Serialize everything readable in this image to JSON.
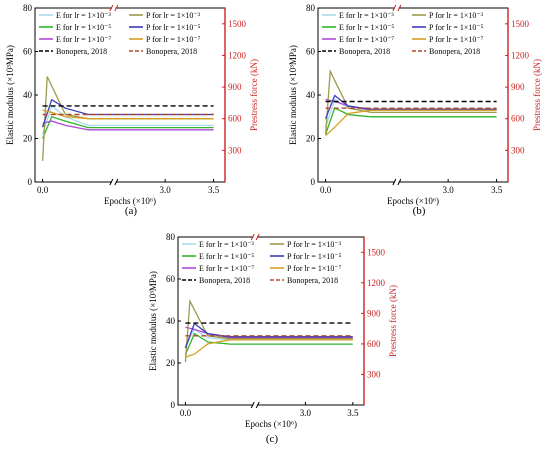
{
  "figure": {
    "colors": {
      "left_axis": "#000000",
      "right_axis": "#cc2222",
      "E_1e3": "#a8dcea",
      "E_1e5": "#2db52d",
      "E_1e7": "#b04ad8",
      "P_1e3": "#9c9a4e",
      "P_1e5": "#3a3ab8",
      "P_1e7": "#d6a020",
      "ref_E": "#000000",
      "ref_P": "#b24a2a"
    }
  },
  "chart_data": [
    {
      "type": "line",
      "panel_label": "(a)",
      "ylabel": "Elastic modulus (×10³MPa)",
      "y2label": "Prestress force (kN)",
      "xlabel": "Epochs (×10⁶)",
      "ylim": [
        0,
        80
      ],
      "yticks": [
        "0",
        "20",
        "40",
        "60",
        "80"
      ],
      "y2lim": [
        0,
        1650
      ],
      "y2ticks": [
        "300",
        "600",
        "900",
        "1200",
        "1500"
      ],
      "xticks": [
        "0.0",
        "3.0",
        "3.5"
      ],
      "axis_break": true,
      "legend": [
        "E for lr = 1×10⁻³",
        "P for lr = 1×10⁻³",
        "E for lr = 1×10⁻⁵",
        "P for lr = 1×10⁻⁵",
        "E for lr = 1×10⁻⁷",
        "P for lr = 1×10⁻⁷",
        "Bonopera, 2018",
        "Bonopera, 2018"
      ],
      "legend_placement": "top",
      "series": [
        {
          "key": "E_1e3",
          "name": "E for lr = 1×10⁻³",
          "x": [
            0,
            0.2,
            0.5,
            1,
            3.5
          ],
          "values": [
            22,
            35,
            30,
            26,
            26
          ]
        },
        {
          "key": "E_1e5",
          "name": "E for lr = 1×10⁻⁵",
          "x": [
            0,
            0.2,
            0.5,
            1,
            3.5
          ],
          "values": [
            20,
            30,
            28,
            25,
            25
          ]
        },
        {
          "key": "E_1e7",
          "name": "E for lr = 1×10⁻⁷",
          "x": [
            0,
            0.2,
            0.5,
            1,
            3.5
          ],
          "values": [
            27,
            28,
            26,
            24,
            24
          ]
        },
        {
          "key": "P_1e3",
          "name": "P for lr = 1×10⁻³",
          "x": [
            0,
            0.1,
            0.5,
            1,
            3.5
          ],
          "values": [
            200,
            1000,
            640,
            600,
            600
          ]
        },
        {
          "key": "P_1e5",
          "name": "P for lr = 1×10⁻⁵",
          "x": [
            0,
            0.2,
            0.5,
            1,
            3.5
          ],
          "values": [
            520,
            780,
            700,
            640,
            640
          ]
        },
        {
          "key": "P_1e7",
          "name": "P for lr = 1×10⁻⁷",
          "x": [
            0,
            0.2,
            0.5,
            1,
            3.5
          ],
          "values": [
            680,
            660,
            620,
            600,
            600
          ]
        },
        {
          "key": "ref_E",
          "name": "Bonopera, 2018",
          "dashed": true,
          "x": [
            0,
            3.5
          ],
          "values": [
            35,
            35
          ]
        },
        {
          "key": "ref_P",
          "name": "Bonopera, 2018",
          "dashed": true,
          "x": [
            0,
            3.5
          ],
          "values": [
            640,
            640
          ]
        }
      ]
    },
    {
      "type": "line",
      "panel_label": "(b)",
      "ylabel": "Elastic modulus (×10³MPa)",
      "y2label": "Prestress force (kN)",
      "xlabel": "Epochs (×10⁶)",
      "ylim": [
        0,
        80
      ],
      "yticks": [
        "0",
        "20",
        "40",
        "60",
        "80"
      ],
      "y2lim": [
        0,
        1650
      ],
      "y2ticks": [
        "300",
        "600",
        "900",
        "1200",
        "1500"
      ],
      "xticks": [
        "0.0",
        "3.0",
        "3.5"
      ],
      "axis_break": true,
      "legend": [
        "E for lr = 1×10⁻³",
        "P for lr = 1×10⁻³",
        "E for lr = 1×10⁻⁵",
        "P for lr = 1×10⁻⁵",
        "E for lr = 1×10⁻⁷",
        "P for lr = 1×10⁻⁷",
        "Bonopera, 2018",
        "Bonopera, 2018"
      ],
      "legend_placement": "top",
      "series": [
        {
          "key": "E_1e3",
          "name": "E for lr = 1×10⁻³",
          "x": [
            0,
            0.2,
            0.5,
            1,
            3.5
          ],
          "values": [
            25,
            38,
            34,
            33,
            33
          ]
        },
        {
          "key": "E_1e5",
          "name": "E for lr = 1×10⁻⁵",
          "x": [
            0,
            0.2,
            0.5,
            1,
            3.5
          ],
          "values": [
            22,
            34,
            31,
            30,
            30
          ]
        },
        {
          "key": "E_1e7",
          "name": "E for lr = 1×10⁻⁷",
          "x": [
            0,
            0.2,
            0.5,
            1,
            3.5
          ],
          "values": [
            38,
            37,
            35,
            33,
            33
          ]
        },
        {
          "key": "P_1e3",
          "name": "P for lr = 1×10⁻³",
          "x": [
            0,
            0.1,
            0.5,
            1,
            3.5
          ],
          "values": [
            450,
            1050,
            700,
            660,
            660
          ]
        },
        {
          "key": "P_1e5",
          "name": "P for lr = 1×10⁻⁵",
          "x": [
            0,
            0.2,
            0.5,
            1,
            3.5
          ],
          "values": [
            600,
            820,
            720,
            690,
            690
          ]
        },
        {
          "key": "P_1e7",
          "name": "P for lr = 1×10⁻⁷",
          "x": [
            0,
            0.2,
            0.5,
            1,
            3.5
          ],
          "values": [
            440,
            520,
            650,
            680,
            680
          ]
        },
        {
          "key": "ref_E",
          "name": "Bonopera, 2018",
          "dashed": true,
          "x": [
            0,
            3.5
          ],
          "values": [
            37,
            37
          ]
        },
        {
          "key": "ref_P",
          "name": "Bonopera, 2018",
          "dashed": true,
          "x": [
            0,
            3.5
          ],
          "values": [
            700,
            700
          ]
        }
      ]
    },
    {
      "type": "line",
      "panel_label": "(c)",
      "ylabel": "Elastic modulus (×10³MPa)",
      "y2label": "Prestress force (kN)",
      "xlabel": "Epochs (×10⁶)",
      "ylim": [
        0,
        80
      ],
      "yticks": [
        "0",
        "20",
        "40",
        "60",
        "80"
      ],
      "y2lim": [
        0,
        1650
      ],
      "y2ticks": [
        "300",
        "600",
        "900",
        "1200",
        "1500"
      ],
      "xticks": [
        "0.0",
        "3.0",
        "3.5"
      ],
      "axis_break": true,
      "legend": [
        "E for lr = 1×10⁻³",
        "P for lr = 1×10⁻³",
        "E for lr = 1×10⁻⁵",
        "P for lr = 1×10⁻⁵",
        "E for lr = 1×10⁻⁷",
        "P for lr = 1×10⁻⁷",
        "Bonopera, 2018",
        "Bonopera, 2018"
      ],
      "legend_placement": "top",
      "series": [
        {
          "key": "E_1e3",
          "name": "E for lr = 1×10⁻³",
          "x": [
            0,
            0.2,
            0.5,
            1,
            3.5
          ],
          "values": [
            28,
            36,
            32,
            31,
            31
          ]
        },
        {
          "key": "E_1e5",
          "name": "E for lr = 1×10⁻⁵",
          "x": [
            0,
            0.2,
            0.5,
            1,
            3.5
          ],
          "values": [
            24,
            34,
            30,
            29,
            29
          ]
        },
        {
          "key": "E_1e7",
          "name": "E for lr = 1×10⁻⁷",
          "x": [
            0,
            0.2,
            0.5,
            1,
            3.5
          ],
          "values": [
            37,
            36,
            34,
            32,
            32
          ]
        },
        {
          "key": "P_1e3",
          "name": "P for lr = 1×10⁻³",
          "x": [
            0,
            0.1,
            0.5,
            1,
            3.5
          ],
          "values": [
            420,
            1020,
            680,
            650,
            650
          ]
        },
        {
          "key": "P_1e5",
          "name": "P for lr = 1×10⁻⁵",
          "x": [
            0,
            0.2,
            0.5,
            1,
            3.5
          ],
          "values": [
            560,
            800,
            700,
            670,
            670
          ]
        },
        {
          "key": "P_1e7",
          "name": "P for lr = 1×10⁻⁷",
          "x": [
            0,
            0.2,
            0.5,
            1,
            3.5
          ],
          "values": [
            470,
            500,
            600,
            640,
            640
          ]
        },
        {
          "key": "ref_E",
          "name": "Bonopera, 2018",
          "dashed": true,
          "x": [
            0,
            3.5
          ],
          "values": [
            39,
            39
          ]
        },
        {
          "key": "ref_P",
          "name": "Bonopera, 2018",
          "dashed": true,
          "x": [
            0,
            3.5
          ],
          "values": [
            680,
            680
          ]
        }
      ]
    }
  ]
}
